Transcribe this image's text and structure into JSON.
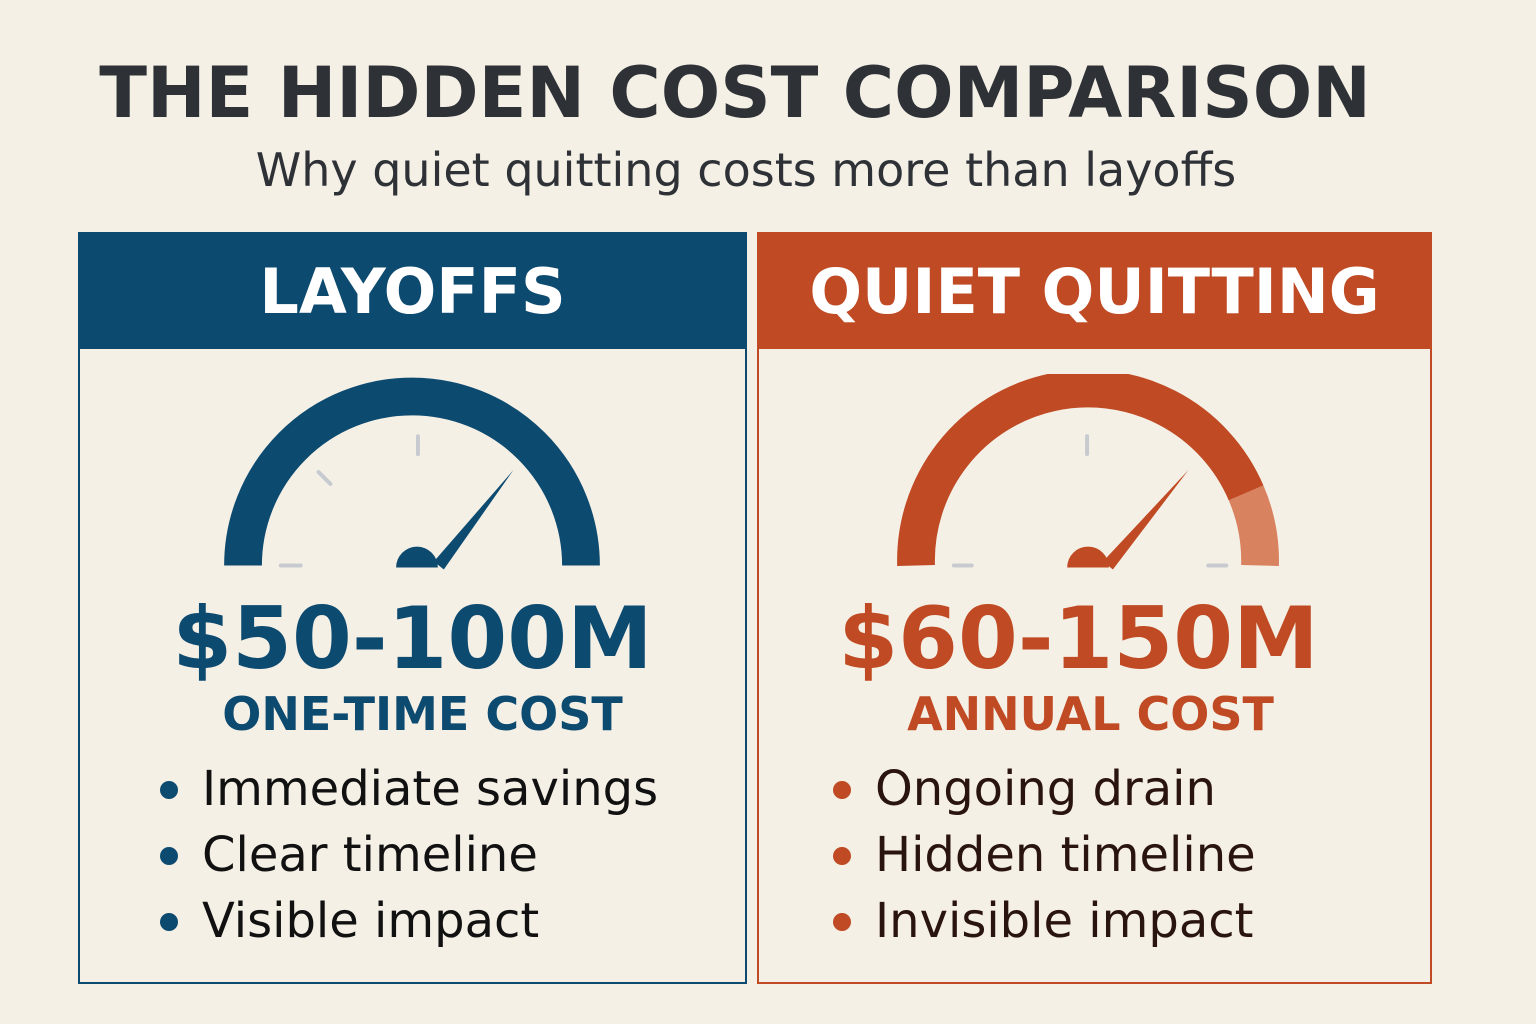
{
  "title": "THE HIDDEN COST COMPARISON",
  "subtitle": "Why quiet quitting costs more than layoffs",
  "colors": {
    "background": "#f5f0e6",
    "title_text": "#2e3237",
    "layoffs_accent": "#0d4a70",
    "quiet_quitting_accent": "#bf4a23",
    "quiet_quitting_highlight": "#d9825f"
  },
  "panels": [
    {
      "id": "layoffs",
      "header": "LAYOFFS",
      "gauge_icon": "speedometer-icon",
      "cost_value": "$50-100M",
      "cost_label": "ONE-TIME COST",
      "bullets": [
        "Immediate savings",
        "Clear timeline",
        "Visible impact"
      ]
    },
    {
      "id": "quiet_quitting",
      "header": "QUIET QUITTING",
      "gauge_icon": "speedometer-icon",
      "cost_value": "$60-150M",
      "cost_label": "ANNUAL COST",
      "bullets": [
        "Ongoing drain",
        "Hidden timeline",
        "Invisible impact"
      ]
    }
  ]
}
